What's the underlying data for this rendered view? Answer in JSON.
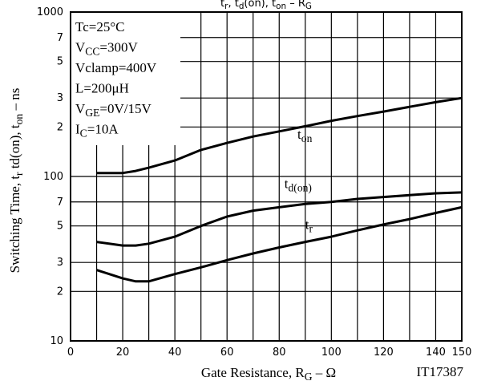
{
  "chart_data": {
    "type": "line",
    "title": [
      "t",
      "r",
      ", t",
      "d",
      "(on), t",
      "on",
      " – R",
      "G"
    ],
    "x_label": [
      "Gate Resistance, R",
      "G",
      " – Ω"
    ],
    "y_label": [
      "Switching Time, t",
      "r",
      " td(on),  t",
      "on",
      " – ns"
    ],
    "note": "IT17387",
    "conditions": [
      [
        "Tc=25°C"
      ],
      [
        "V",
        "CC",
        "=300V"
      ],
      [
        "Vclamp=400V"
      ],
      [
        "L=200μH"
      ],
      [
        "V",
        "GE",
        "=0V/15V"
      ],
      [
        "I",
        "C",
        "=10A"
      ]
    ],
    "log_y": true,
    "grid": true,
    "xlim": [
      0,
      150
    ],
    "xticks": [
      0,
      20,
      40,
      60,
      80,
      100,
      120,
      140,
      150
    ],
    "x_minor_grid": [
      10,
      30,
      50,
      70,
      90,
      110,
      130
    ],
    "ylim": [
      10,
      1000
    ],
    "yticks": [
      10,
      {
        "value": 20,
        "label": "2"
      },
      {
        "value": 30,
        "label": "3"
      },
      {
        "value": 50,
        "label": "5"
      },
      {
        "value": 70,
        "label": "7"
      },
      100,
      {
        "value": 200,
        "label": "2"
      },
      {
        "value": 300,
        "label": "3"
      },
      {
        "value": 500,
        "label": "5"
      },
      {
        "value": 700,
        "label": "7"
      },
      1000
    ],
    "x": [
      10,
      20,
      25,
      30,
      40,
      50,
      60,
      70,
      80,
      90,
      100,
      110,
      120,
      130,
      140,
      150
    ],
    "series": [
      {
        "name": [
          "t",
          "on"
        ],
        "color": "#000000",
        "label_at": [
          87,
          170
        ],
        "values": [
          105,
          105,
          108,
          113,
          125,
          145,
          160,
          175,
          188,
          202,
          218,
          233,
          248,
          265,
          283,
          300
        ]
      },
      {
        "name": [
          "t",
          "d(on)"
        ],
        "color": "#000000",
        "label_at": [
          82,
          85
        ],
        "values": [
          40,
          38,
          38,
          39,
          43,
          50,
          57,
          62,
          65,
          68,
          70,
          73,
          75,
          77,
          79,
          80
        ]
      },
      {
        "name": [
          "t",
          "r"
        ],
        "color": "#000000",
        "label_at": [
          90,
          48
        ],
        "values": [
          27,
          24,
          23,
          23,
          25.5,
          28,
          31,
          34,
          37,
          40,
          43,
          47,
          51,
          55,
          60,
          65
        ]
      }
    ]
  }
}
